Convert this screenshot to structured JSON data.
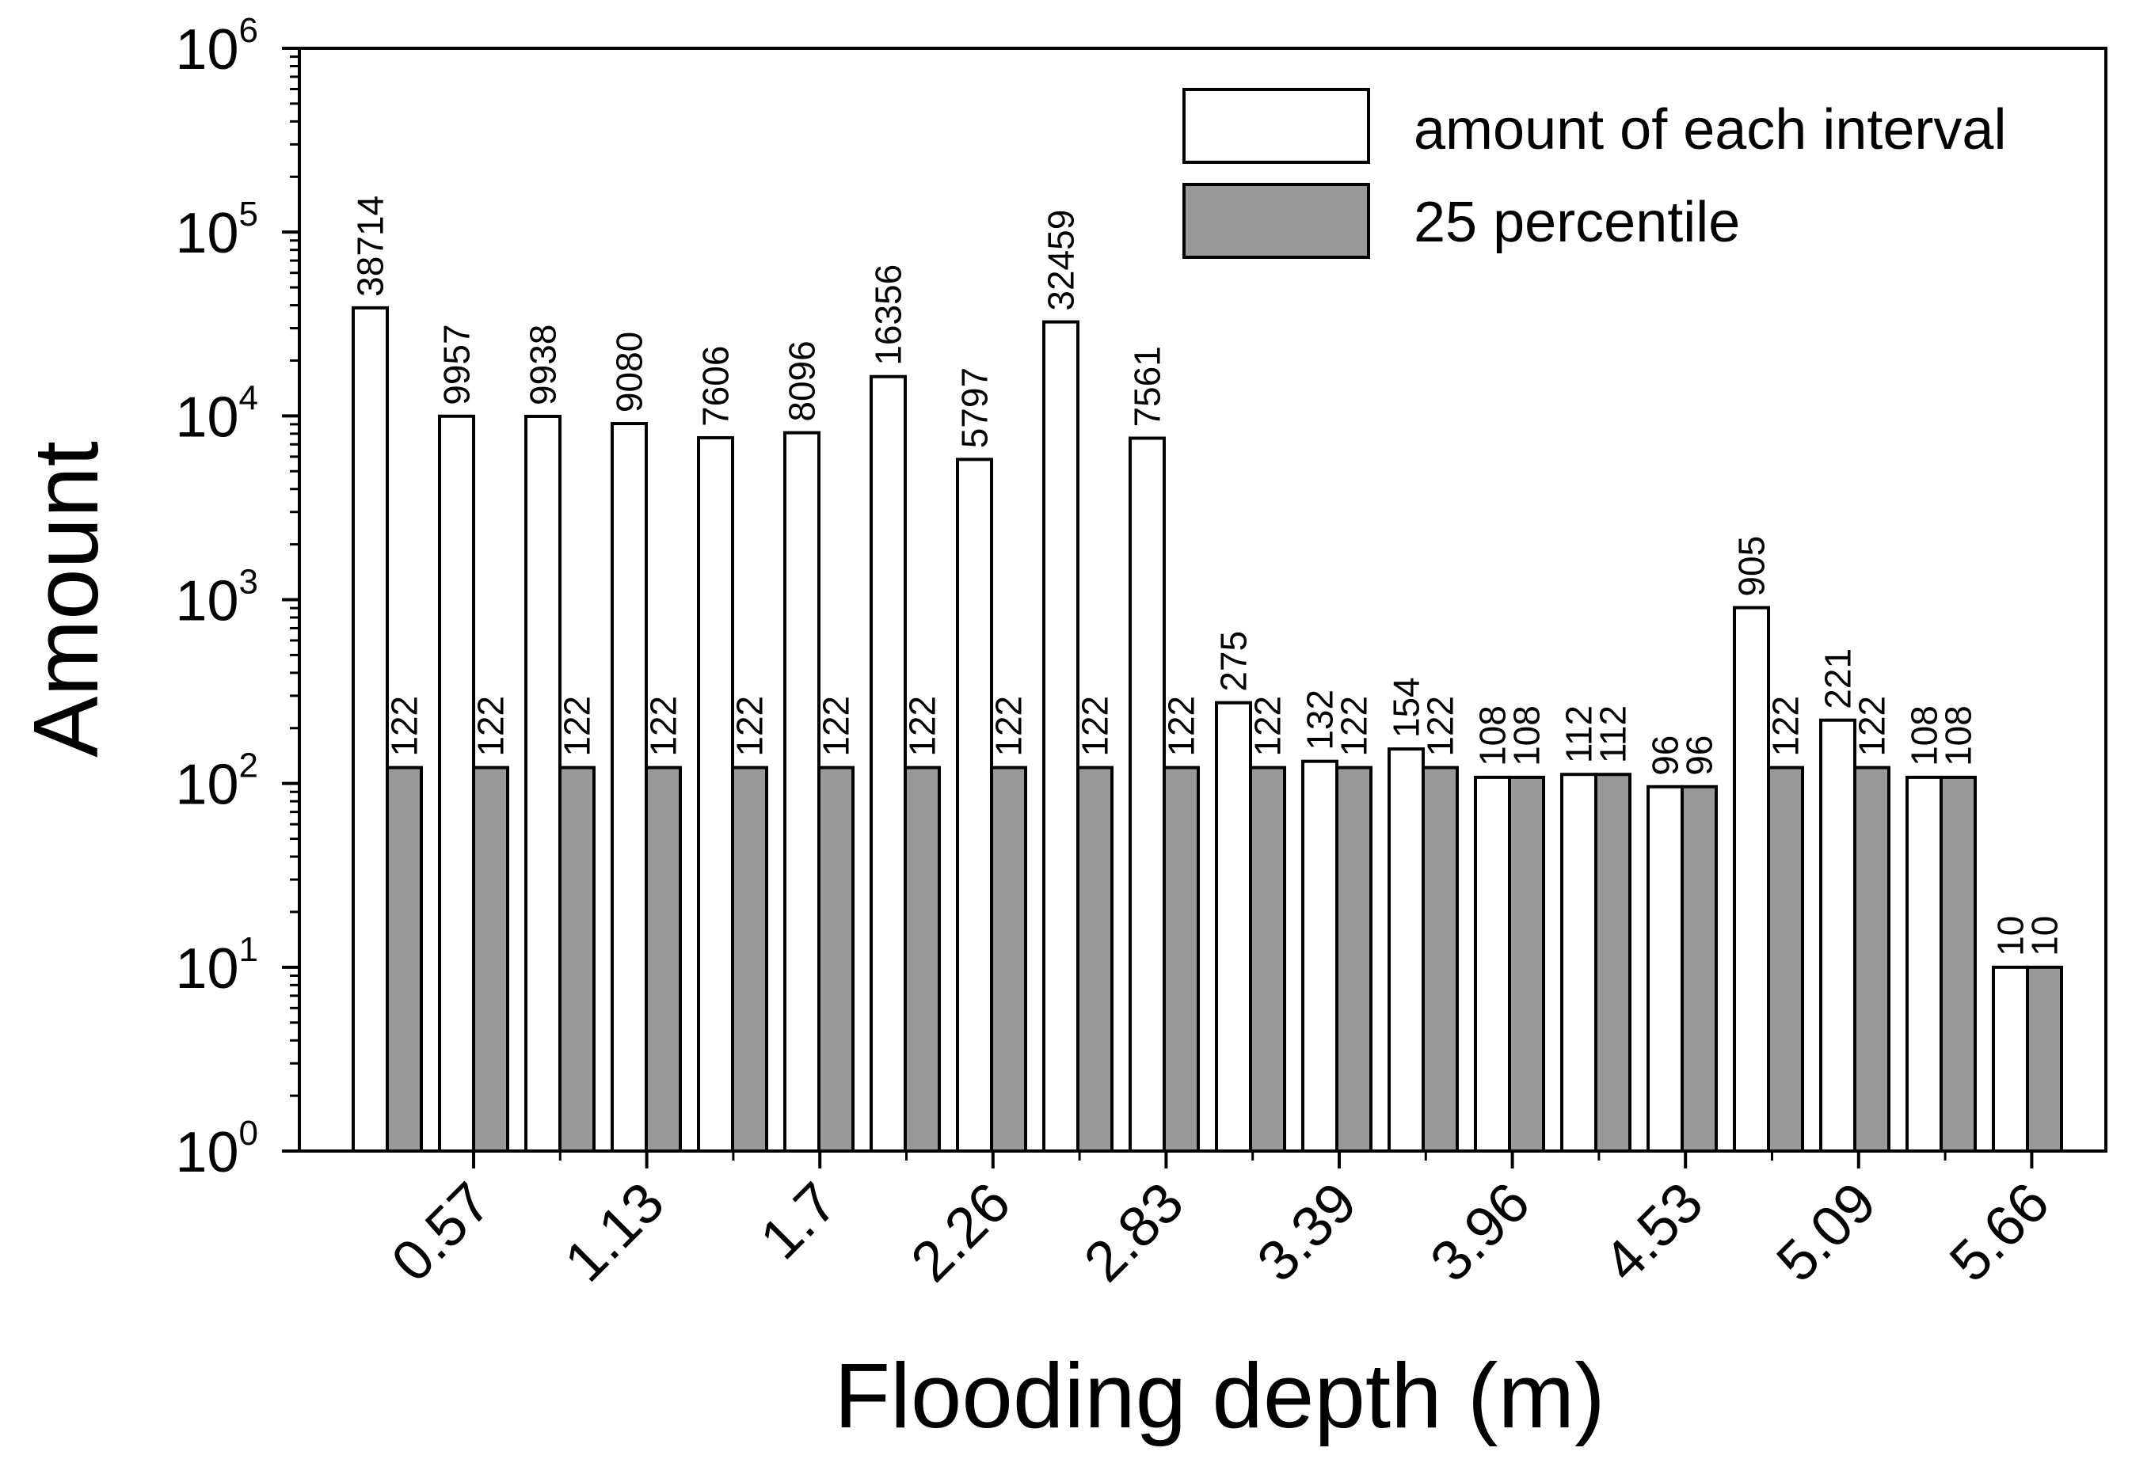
{
  "chart_data": {
    "type": "bar",
    "scale": "log",
    "ylim": [
      1,
      1000000
    ],
    "ylabel": "Amount",
    "xlabel": "Flooding depth (m)",
    "y_tick_labels": [
      {
        "base": "10",
        "exp": "0"
      },
      {
        "base": "10",
        "exp": "1"
      },
      {
        "base": "10",
        "exp": "2"
      },
      {
        "base": "10",
        "exp": "3"
      },
      {
        "base": "10",
        "exp": "4"
      },
      {
        "base": "10",
        "exp": "5"
      },
      {
        "base": "10",
        "exp": "6"
      }
    ],
    "x_tick_labels": [
      "0.57",
      "1.13",
      "1.7",
      "2.26",
      "2.83",
      "3.39",
      "3.96",
      "4.53",
      "5.09",
      "5.66"
    ],
    "colors": {
      "amount": "#ffffff",
      "percentile": "#999999",
      "stroke": "#000000"
    },
    "series": [
      {
        "name": "amount of each interval",
        "values": [
          38714,
          9957,
          9938,
          9080,
          7606,
          8096,
          16356,
          5797,
          32459,
          7561,
          275,
          132,
          154,
          108,
          112,
          96,
          905,
          221,
          108,
          10
        ]
      },
      {
        "name": "25 percentile",
        "values": [
          122,
          122,
          122,
          122,
          122,
          122,
          122,
          122,
          122,
          122,
          122,
          122,
          122,
          108,
          112,
          96,
          122,
          122,
          108,
          10
        ]
      }
    ]
  }
}
